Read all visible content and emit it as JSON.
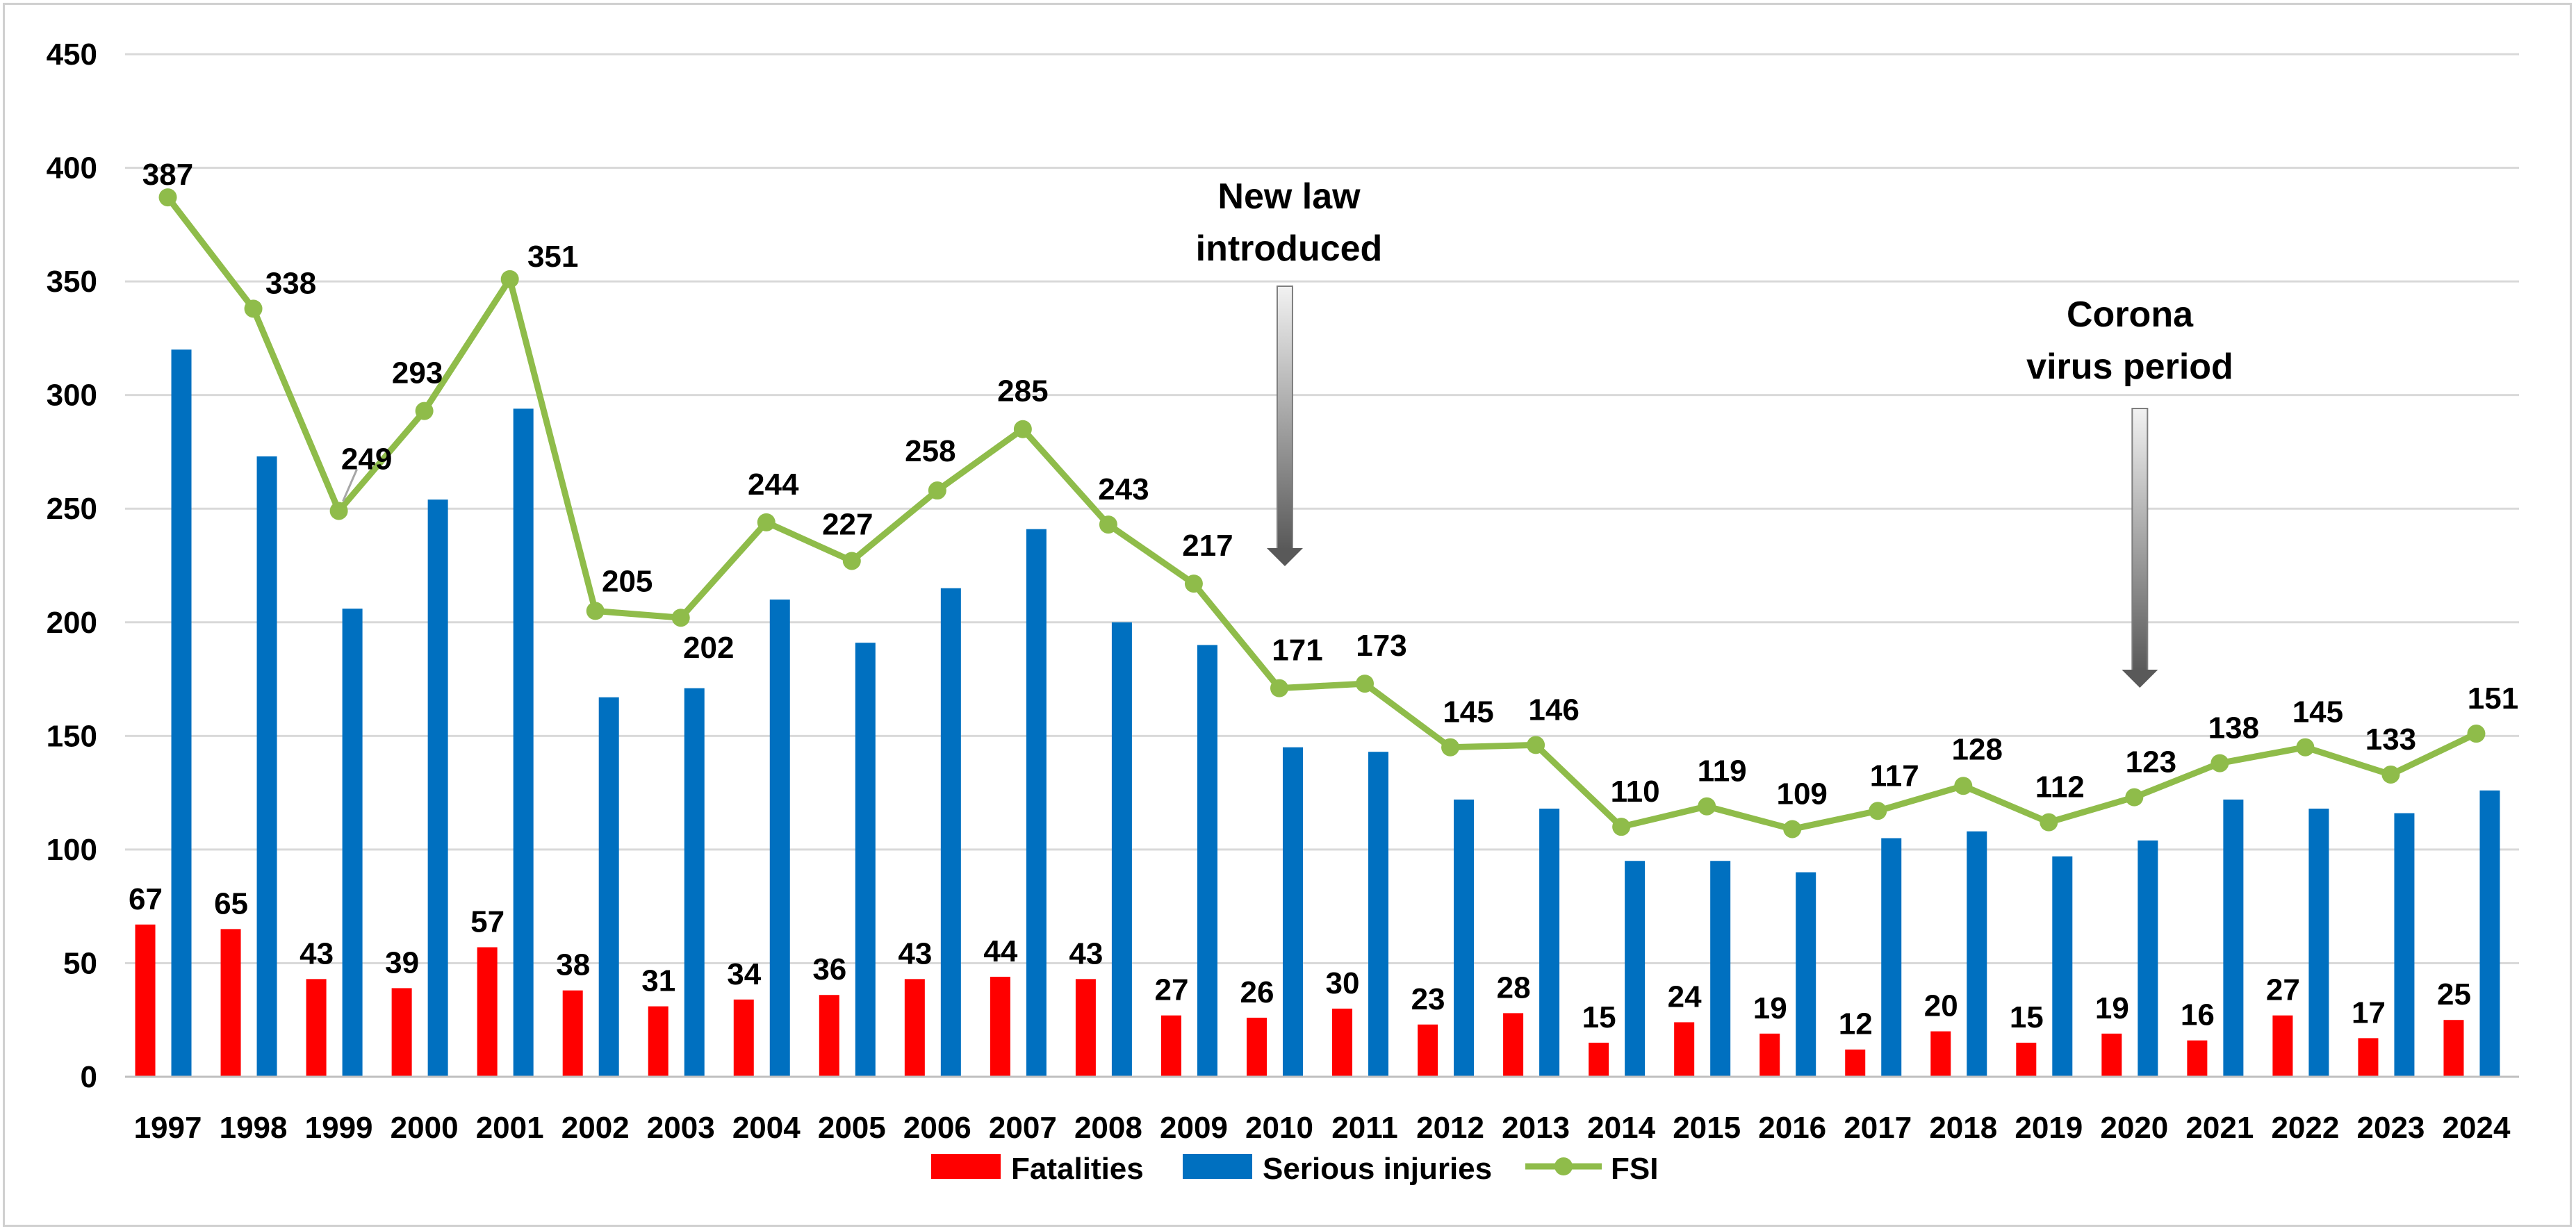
{
  "chart_data": {
    "type": "bar+line",
    "categories": [
      "1997",
      "1998",
      "1999",
      "2000",
      "2001",
      "2002",
      "2003",
      "2004",
      "2005",
      "2006",
      "2007",
      "2008",
      "2009",
      "2010",
      "2011",
      "2012",
      "2013",
      "2014",
      "2015",
      "2016",
      "2017",
      "2018",
      "2019",
      "2020",
      "2021",
      "2022",
      "2023",
      "2024"
    ],
    "series": [
      {
        "name": "Fatalities",
        "kind": "bar",
        "color": "#ff0000",
        "values": [
          67,
          65,
          43,
          39,
          57,
          38,
          31,
          34,
          36,
          43,
          44,
          43,
          27,
          26,
          30,
          23,
          28,
          15,
          24,
          19,
          12,
          20,
          15,
          19,
          16,
          27,
          17,
          25
        ],
        "labels_shown": true
      },
      {
        "name": "Serious injuries",
        "kind": "bar",
        "color": "#0070c0",
        "values": [
          320,
          273,
          206,
          254,
          294,
          167,
          171,
          210,
          191,
          215,
          241,
          200,
          190,
          145,
          143,
          122,
          118,
          95,
          95,
          90,
          105,
          108,
          97,
          104,
          122,
          118,
          116,
          126
        ],
        "labels_shown": false
      },
      {
        "name": "FSI",
        "kind": "line",
        "color": "#8fbc4a",
        "values": [
          387,
          338,
          249,
          293,
          351,
          205,
          202,
          244,
          227,
          258,
          285,
          243,
          217,
          171,
          173,
          145,
          146,
          110,
          119,
          109,
          117,
          128,
          112,
          123,
          138,
          145,
          133,
          151
        ],
        "labels_shown": true
      }
    ],
    "y_ticks": [
      "0",
      "50",
      "100",
      "150",
      "200",
      "250",
      "300",
      "350",
      "400",
      "450"
    ],
    "ylim": [
      0,
      450
    ],
    "grid": true,
    "legend_position": "bottom",
    "annotations": [
      {
        "lines": [
          "New law",
          "introduced"
        ],
        "category": "2010"
      },
      {
        "lines": [
          "Corona",
          "virus period"
        ],
        "category": "2020"
      }
    ],
    "title": "",
    "xlabel": "",
    "ylabel": ""
  }
}
